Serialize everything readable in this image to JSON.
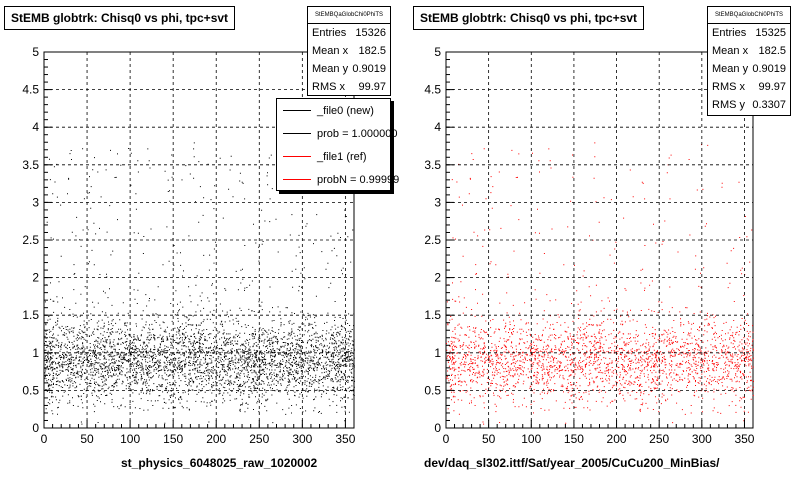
{
  "corner_note": "",
  "panels": [
    {
      "title": "StEMB globtrk: Chisq0 vs phi, tpc+svt",
      "stats": {
        "name": "StEMBQaGlobChi0PhiTS",
        "rows": [
          {
            "label": "Entries",
            "value": "15326"
          },
          {
            "label": "Mean x",
            "value": "182.5"
          },
          {
            "label": "Mean y",
            "value": "0.9019"
          },
          {
            "label": "RMS x",
            "value": "99.97"
          }
        ]
      },
      "legend": {
        "entries": [
          {
            "label": "_file0 (new)",
            "color": "#000000"
          },
          {
            "label": "prob = 1.000000",
            "color": "#000000"
          },
          {
            "label": "_file1 (ref)",
            "color": "#ff0000"
          },
          {
            "label": "probN = 0.99999",
            "color": "#ff0000"
          }
        ]
      },
      "xcaption": "st_physics_6048025_raw_1020002",
      "marker_color": "#000000"
    },
    {
      "title": "StEMB globtrk: Chisq0 vs phi, tpc+svt",
      "stats": {
        "name": "StEMBQaGlobChi0PhiTS",
        "rows": [
          {
            "label": "Entries",
            "value": "15325"
          },
          {
            "label": "Mean x",
            "value": "182.5"
          },
          {
            "label": "Mean y",
            "value": "0.9019"
          },
          {
            "label": "RMS x",
            "value": "99.97"
          },
          {
            "label": "RMS y",
            "value": "0.3307"
          }
        ]
      },
      "legend": null,
      "xcaption": "dev/daq_sl302.ittf/Sat/year_2005/CuCu200_MinBias/",
      "marker_color": "#ff0000"
    }
  ],
  "chart_data": [
    {
      "type": "scatter",
      "title": "StEMB globtrk: Chisq0 vs phi, tpc+svt",
      "xlim": [
        0,
        360
      ],
      "ylim": [
        0,
        5
      ],
      "xticks": [
        0,
        50,
        100,
        150,
        200,
        250,
        300,
        350
      ],
      "yticks": [
        0,
        0.5,
        1,
        1.5,
        2,
        2.5,
        3,
        3.5,
        4,
        4.5,
        5
      ],
      "grid": true,
      "entries": 15326,
      "mean_x": 182.5,
      "mean_y": 0.9019,
      "rms_x": 99.97,
      "series_color": "#000000"
    },
    {
      "type": "scatter",
      "title": "StEMB globtrk: Chisq0 vs phi, tpc+svt",
      "xlim": [
        0,
        360
      ],
      "ylim": [
        0,
        5
      ],
      "xticks": [
        0,
        50,
        100,
        150,
        200,
        250,
        300,
        350
      ],
      "yticks": [
        0,
        0.5,
        1,
        1.5,
        2,
        2.5,
        3,
        3.5,
        4,
        4.5,
        5
      ],
      "grid": true,
      "entries": 15325,
      "mean_x": 182.5,
      "mean_y": 0.9019,
      "rms_x": 99.97,
      "rms_y": 0.3307,
      "series_color": "#ff0000"
    }
  ]
}
